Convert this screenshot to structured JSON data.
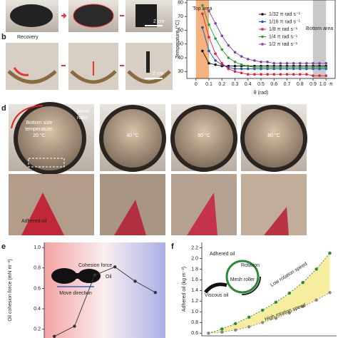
{
  "figure": {
    "panel_labels": [
      "b",
      "d",
      "e",
      "f"
    ],
    "a_scale": "2 cm",
    "b_title": "Recovery",
    "b_scale": "2 cm",
    "d_mesh": [
      "Mesh",
      "roller"
    ],
    "d_bottom_label": [
      "Bottom side",
      "temperature:",
      "20 °C"
    ],
    "d_temps": [
      "40 °C",
      "60 °C",
      "80 °C"
    ],
    "d_oil": "Adhered oil",
    "e_annotations": [
      "Cohesion force",
      "Oil",
      "Move direction"
    ],
    "f_annotations": [
      "Adhered oil",
      "Rotation",
      "Mesh roller",
      "Viscous oil"
    ]
  },
  "chart_data": [
    {
      "type": "line",
      "y_label": "Temperature (°C)",
      "x_label": "θ (rad)",
      "frame": true,
      "x": [
        0,
        0.05,
        0.1,
        0.15,
        0.2,
        0.25,
        0.3,
        0.35,
        0.4,
        0.45,
        0.5,
        0.55,
        0.6,
        0.65,
        0.7,
        0.75,
        0.8,
        0.85,
        0.9,
        0.95,
        1.0
      ],
      "xlim": [
        -0.07,
        1.07
      ],
      "ylim": [
        25,
        82
      ],
      "xticks": [
        0,
        0.1,
        0.2,
        0.3,
        0.4,
        0.5,
        0.6,
        0.7,
        0.8,
        0.9,
        {
          "value": 1.0,
          "label": "1.0 ·π"
        }
      ],
      "yticks": [
        30,
        40,
        50,
        60,
        70,
        80
      ],
      "bands": [
        {
          "label": "Top area",
          "range": [
            0,
            0.1
          ],
          "color": "#f6b27c"
        },
        {
          "label": "Bottom area",
          "range": [
            0.9,
            1.0
          ],
          "color": "#c9c9c9"
        }
      ],
      "legend": "upper right",
      "series": [
        {
          "name": "1/32 π rad s⁻¹",
          "color": "#111111",
          "values": [
            null,
            45,
            36,
            35,
            34,
            34,
            34,
            34,
            34,
            34,
            34,
            34,
            34,
            34,
            34,
            34,
            34,
            34,
            34,
            34,
            34
          ]
        },
        {
          "name": "1/16 π rad s⁻¹",
          "color": "#1f4fc8",
          "values": [
            null,
            62,
            45,
            38,
            35,
            33,
            32,
            32,
            32,
            32,
            32,
            32,
            32,
            32,
            32,
            32,
            32,
            32,
            32,
            32,
            32
          ]
        },
        {
          "name": "1/8 π rad s⁻¹",
          "color": "#e8203a",
          "values": [
            null,
            72,
            55,
            43,
            36,
            32,
            30,
            29,
            28,
            28,
            28,
            28,
            28,
            28,
            28,
            28,
            28,
            28,
            27,
            27,
            27
          ]
        },
        {
          "name": "1/4 π rad s⁻¹",
          "color": "#2a9a3a",
          "values": [
            null,
            78,
            64,
            54,
            46,
            40,
            37,
            35,
            34,
            33,
            33,
            33,
            33,
            33,
            33,
            33,
            33,
            33,
            33,
            33,
            33
          ]
        },
        {
          "name": "1/2 π rad s⁻¹",
          "color": "#7a3fb0",
          "values": [
            null,
            null,
            74,
            65,
            56,
            49,
            44,
            41,
            39,
            38,
            37,
            37,
            36,
            36,
            36,
            36,
            36,
            36,
            36,
            36,
            36
          ]
        }
      ]
    },
    {
      "type": "line",
      "y_label": "Oil cohesion force (mN m⁻²)",
      "categories": [
        null,
        null,
        null,
        null,
        null,
        null
      ],
      "values": [
        0.13,
        0.23,
        0.73,
        0.81,
        0.67,
        0.56
      ],
      "color": "#333333",
      "ylim": [
        0.1,
        1.05
      ],
      "yticks": [
        0.2,
        0.4,
        0.6,
        0.8,
        {
          "value": 1.0,
          "label": "1.0"
        }
      ]
    },
    {
      "type": "line",
      "y_label": "Adhered oil (kg m⁻²)",
      "categories": [
        null,
        null,
        null,
        null,
        null,
        null,
        null,
        null,
        null,
        null
      ],
      "ylim": [
        0.55,
        2.3
      ],
      "yticks": [
        0.6,
        0.8,
        {
          "value": 1.0,
          "label": "1.0"
        },
        1.2,
        1.4,
        1.6,
        1.8,
        {
          "value": 2.0,
          "label": "2.0"
        },
        2.2
      ],
      "fill_between": "#f7ed9e",
      "series": [
        {
          "name": "Low rotation speed",
          "color": "#2a8a3a",
          "values": [
            0.6,
            0.68,
            0.78,
            0.9,
            1.03,
            1.18,
            1.35,
            1.55,
            1.8,
            2.1
          ]
        },
        {
          "name": "High rotation speed",
          "color": "#888888",
          "values": [
            0.6,
            0.62,
            0.66,
            0.72,
            0.8,
            0.88,
            0.98,
            1.1,
            1.22,
            1.36
          ]
        }
      ]
    }
  ]
}
